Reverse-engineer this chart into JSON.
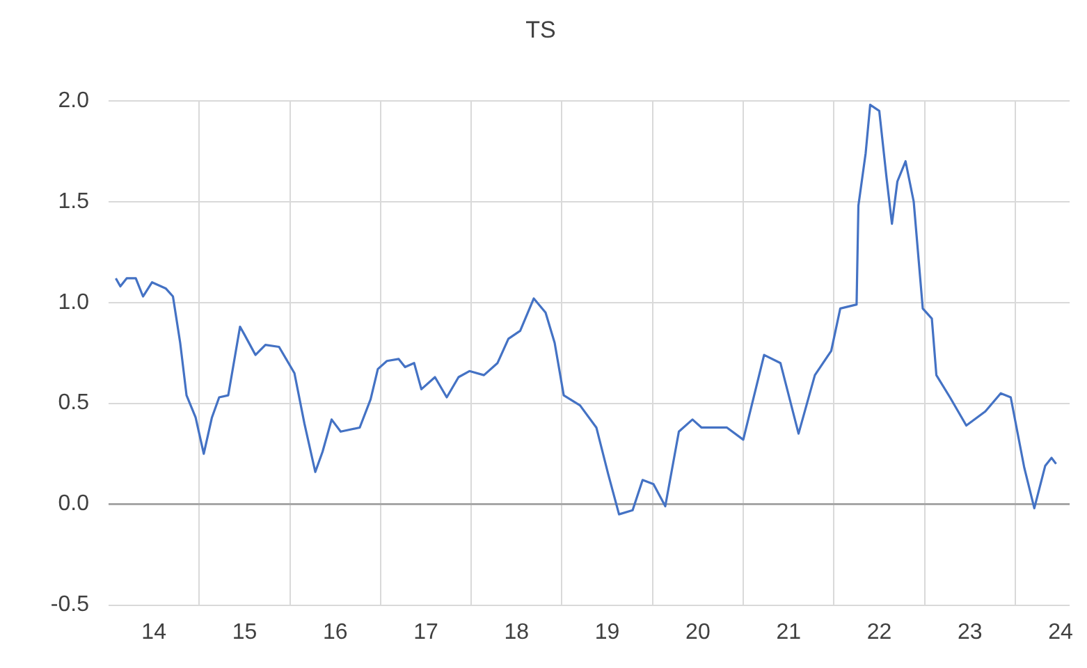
{
  "chart_data": {
    "type": "line",
    "title": "TS",
    "x": [
      13.58,
      13.63,
      13.7,
      13.8,
      13.88,
      13.98,
      14.13,
      14.21,
      14.29,
      14.36,
      14.46,
      14.55,
      14.64,
      14.72,
      14.82,
      14.95,
      15.0,
      15.12,
      15.23,
      15.38,
      15.55,
      15.66,
      15.78,
      15.86,
      15.96,
      16.06,
      16.27,
      16.39,
      16.47,
      16.57,
      16.7,
      16.77,
      16.87,
      16.95,
      17.1,
      17.23,
      17.36,
      17.48,
      17.64,
      17.79,
      17.91,
      18.04,
      18.19,
      18.32,
      18.42,
      18.52,
      18.7,
      18.88,
      19.01,
      19.13,
      19.28,
      19.39,
      19.51,
      19.64,
      19.79,
      19.94,
      20.04,
      20.32,
      20.5,
      20.73,
      20.91,
      21.11,
      21.29,
      21.47,
      21.57,
      21.75,
      21.77,
      21.85,
      21.9,
      22.0,
      22.08,
      22.14,
      22.2,
      22.29,
      22.38,
      22.48,
      22.58,
      22.63,
      22.78,
      22.96,
      23.17,
      23.34,
      23.45,
      23.6,
      23.71,
      23.83,
      23.9,
      23.95
    ],
    "series": [
      {
        "color": "#4472c4",
        "values": [
          1.12,
          1.08,
          1.12,
          1.12,
          1.03,
          1.1,
          1.07,
          1.03,
          0.8,
          0.54,
          0.43,
          0.25,
          0.43,
          0.53,
          0.54,
          0.88,
          0.84,
          0.74,
          0.79,
          0.78,
          0.65,
          0.4,
          0.16,
          0.26,
          0.42,
          0.36,
          0.38,
          0.52,
          0.67,
          0.71,
          0.72,
          0.68,
          0.7,
          0.57,
          0.63,
          0.53,
          0.63,
          0.66,
          0.64,
          0.7,
          0.82,
          0.86,
          1.02,
          0.95,
          0.8,
          0.54,
          0.49,
          0.38,
          0.15,
          -0.05,
          -0.03,
          0.12,
          0.1,
          -0.01,
          0.36,
          0.42,
          0.38,
          0.38,
          0.32,
          0.74,
          0.7,
          0.35,
          0.64,
          0.76,
          0.97,
          0.99,
          1.48,
          1.74,
          1.98,
          1.95,
          1.62,
          1.39,
          1.6,
          1.7,
          1.5,
          0.97,
          0.92,
          0.64,
          0.53,
          0.39,
          0.46,
          0.55,
          0.53,
          0.18,
          -0.02,
          0.19,
          0.23,
          0.2
        ]
      }
    ],
    "xlim": [
      13.5,
      24.1
    ],
    "xticks": [
      14,
      {
        "value": 14.5,
        "label": null
      },
      15,
      {
        "value": 15.5,
        "label": null
      },
      16,
      {
        "value": 16.5,
        "label": null
      },
      17,
      {
        "value": 17.5,
        "label": null
      },
      18,
      {
        "value": 18.5,
        "label": null
      },
      19,
      {
        "value": 19.5,
        "label": null
      },
      20,
      {
        "value": 20.5,
        "label": null
      },
      21,
      {
        "value": 21.5,
        "label": null
      },
      22,
      {
        "value": 22.5,
        "label": null
      },
      23,
      {
        "value": 23.5,
        "label": null
      },
      24
    ],
    "ylim": [
      -0.5,
      2.0
    ],
    "yticks": [
      {
        "value": -0.5,
        "label": "-0.5"
      },
      {
        "value": 0,
        "label": "0.0"
      },
      {
        "value": 0.5,
        "label": "0.5"
      },
      {
        "value": 1,
        "label": "1.0"
      },
      {
        "value": 1.5,
        "label": "1.5"
      },
      {
        "value": 2,
        "label": "2.0"
      }
    ],
    "grid": true,
    "legend": false,
    "marker": "none",
    "line_style": "solid"
  }
}
